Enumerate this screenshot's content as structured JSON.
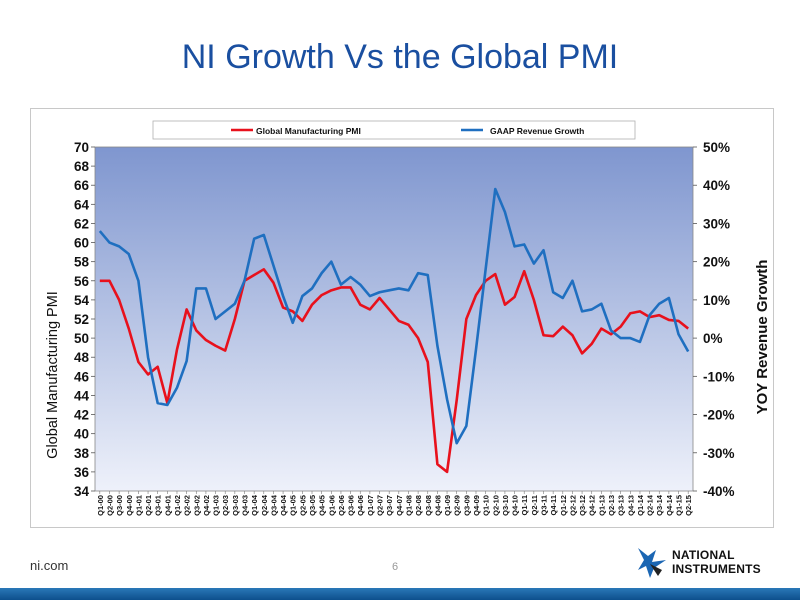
{
  "slide": {
    "title": "NI Growth Vs the Global PMI",
    "footer_left": "ni.com",
    "page_number": "6",
    "logo_line1": "NATIONAL",
    "logo_line2": "INSTRUMENTS"
  },
  "colors": {
    "pmi": "#e8111c",
    "growth": "#1f6fc0",
    "title": "#1a4fa0"
  },
  "chart_data": {
    "type": "line",
    "left_axis_label": "Global Manufacturing PMI",
    "right_axis_label": "YOY Revenue Growth",
    "ylim_left": [
      34,
      70
    ],
    "ylim_right": [
      -40,
      50
    ],
    "left_ticks": [
      34,
      36,
      38,
      40,
      42,
      44,
      46,
      48,
      50,
      52,
      54,
      56,
      58,
      60,
      62,
      64,
      66,
      68,
      70
    ],
    "right_ticks": [
      "-40%",
      "-30%",
      "-20%",
      "-10%",
      "0%",
      "10%",
      "20%",
      "30%",
      "40%",
      "50%"
    ],
    "legend_position": "top",
    "grid": false,
    "categories": [
      "Q1-00",
      "Q2-00",
      "Q3-00",
      "Q4-00",
      "Q1-01",
      "Q2-01",
      "Q3-01",
      "Q4-01",
      "Q1-02",
      "Q2-02",
      "Q3-02",
      "Q4-02",
      "Q1-03",
      "Q2-03",
      "Q3-03",
      "Q4-03",
      "Q1-04",
      "Q2-04",
      "Q3-04",
      "Q4-04",
      "Q1-05",
      "Q2-05",
      "Q3-05",
      "Q4-05",
      "Q1-06",
      "Q2-06",
      "Q3-06",
      "Q4-06",
      "Q1-07",
      "Q2-07",
      "Q3-07",
      "Q4-07",
      "Q1-08",
      "Q2-08",
      "Q3-08",
      "Q4-08",
      "Q1-09",
      "Q2-09",
      "Q3-09",
      "Q4-09",
      "Q1-10",
      "Q2-10",
      "Q3-10",
      "Q4-10",
      "Q1-11",
      "Q2-11",
      "Q3-11",
      "Q4-11",
      "Q1-12",
      "Q2-12",
      "Q3-12",
      "Q4-12",
      "Q1-13",
      "Q2-13",
      "Q3-13",
      "Q4-13",
      "Q1-14",
      "Q2-14",
      "Q3-14",
      "Q4-14",
      "Q1-15",
      "Q2-15"
    ],
    "series": [
      {
        "name": "Global Manufacturing PMI",
        "axis": "left",
        "values": [
          56.0,
          56.0,
          54.0,
          51.0,
          47.5,
          46.2,
          47.0,
          43.2,
          48.8,
          53.0,
          50.8,
          49.8,
          49.2,
          48.7,
          52.0,
          56.0,
          56.6,
          57.2,
          55.8,
          53.2,
          52.8,
          51.8,
          53.5,
          54.5,
          55.0,
          55.3,
          55.3,
          53.5,
          53.0,
          54.2,
          53.0,
          51.8,
          51.4,
          50.0,
          47.5,
          36.8,
          36.0,
          43.5,
          52.0,
          54.5,
          56.0,
          56.7,
          53.5,
          54.3,
          57.0,
          54.0,
          50.3,
          50.2,
          51.2,
          50.3,
          48.4,
          49.4,
          51.0,
          50.4,
          51.2,
          52.6,
          52.8,
          52.2,
          52.4,
          51.9,
          51.8,
          51.0
        ]
      },
      {
        "name": "GAAP Revenue Growth",
        "axis": "right",
        "values": [
          28,
          25,
          24,
          22,
          15,
          -5,
          -17,
          -17.5,
          -13,
          -6,
          13,
          13,
          5,
          7,
          9,
          15,
          26,
          27,
          19,
          11,
          4,
          11,
          13,
          17,
          20,
          14,
          16,
          14,
          11,
          12,
          12.5,
          13,
          12.5,
          17,
          16.5,
          -2,
          -16,
          -27.5,
          -23,
          -3,
          18,
          39,
          33,
          24,
          24.5,
          19.5,
          23,
          12,
          10.5,
          15,
          7,
          7.5,
          9,
          2,
          0,
          0,
          -1,
          6,
          9,
          10.5,
          1,
          -3.5
        ]
      }
    ]
  }
}
